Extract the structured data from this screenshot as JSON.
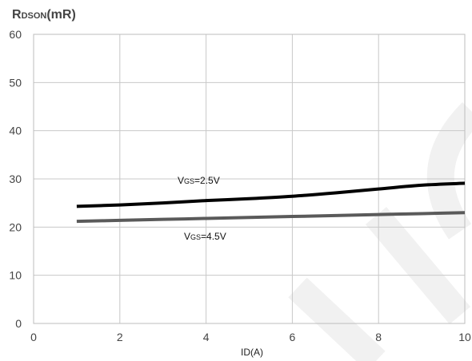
{
  "chart_data": {
    "type": "line",
    "title": "",
    "ylabel": "RDSON(mR)",
    "ylabel_main": "R",
    "ylabel_sub": "DSON",
    "ylabel_unit": "(mR)",
    "xlabel": "ID(A)",
    "xlim": [
      0,
      10
    ],
    "ylim": [
      0,
      60
    ],
    "xticks": [
      "0",
      "2",
      "4",
      "6",
      "8",
      "10"
    ],
    "yticks": [
      "60",
      "50",
      "40",
      "30",
      "20",
      "10",
      "0"
    ],
    "grid": true,
    "series": [
      {
        "name": "VGS=2.5V",
        "label_main": "V",
        "label_sub": "GS",
        "label_rest": "=2.5V",
        "color": "#000000",
        "x": [
          1,
          2,
          3,
          4,
          5,
          6,
          7,
          8,
          9,
          10
        ],
        "y": [
          24.3,
          24.6,
          25.0,
          25.5,
          25.9,
          26.4,
          27.1,
          27.9,
          28.7,
          29.1
        ]
      },
      {
        "name": "VGS=4.5V",
        "label_main": "V",
        "label_sub": "GS",
        "label_rest": "=4.5V",
        "color": "#5a5a5a",
        "x": [
          1,
          2,
          3,
          4,
          5,
          6,
          7,
          8,
          9,
          10
        ],
        "y": [
          21.2,
          21.4,
          21.6,
          21.8,
          22.0,
          22.2,
          22.4,
          22.6,
          22.8,
          23.0
        ]
      }
    ]
  }
}
